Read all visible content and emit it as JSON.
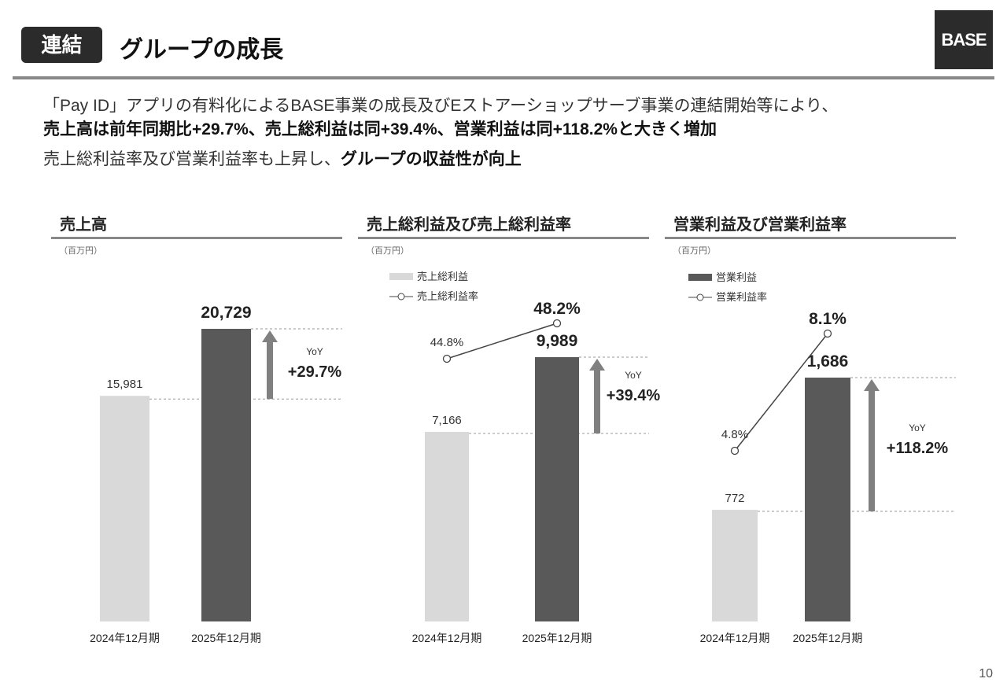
{
  "header": {
    "badge": "連結",
    "title": "グループの成長",
    "logo": "BASE"
  },
  "lead": {
    "line1": "「Pay ID」アプリの有料化によるBASE事業の成長及びEストアーショップサーブ事業の連結開始等により、",
    "line2": "売上高は前年同期比+29.7%、売上総利益は同+39.4%、営業利益は同+118.2%と大きく増加",
    "line3_normal": "売上総利益率及び営業利益率も上昇し、",
    "line3_bold": "グループの収益性が向上"
  },
  "page_number": "10",
  "colors": {
    "bar_prior": "#d9d9d9",
    "bar_current": "#595959",
    "arrow": "#808080",
    "line": "#444444"
  },
  "chart_data": [
    {
      "type": "bar",
      "title": "売上高",
      "unit": "（百万円）",
      "categories": [
        "2024年12月期",
        "2025年12月期"
      ],
      "values": [
        15981,
        20729
      ],
      "value_labels": [
        "15,981",
        "20,729"
      ],
      "yoy_label": "YoY",
      "yoy_value": "+29.7%"
    },
    {
      "type": "bar+line",
      "title": "売上総利益及び売上総利益率",
      "unit": "（百万円）",
      "categories": [
        "2024年12月期",
        "2025年12月期"
      ],
      "legend": [
        "売上総利益",
        "売上総利益率"
      ],
      "values": [
        7166,
        9989
      ],
      "value_labels": [
        "7,166",
        "9,989"
      ],
      "rates": [
        44.8,
        48.2
      ],
      "rate_labels": [
        "44.8%",
        "48.2%"
      ],
      "yoy_label": "YoY",
      "yoy_value": "+39.4%"
    },
    {
      "type": "bar+line",
      "title": "営業利益及び営業利益率",
      "unit": "（百万円）",
      "categories": [
        "2024年12月期",
        "2025年12月期"
      ],
      "legend": [
        "営業利益",
        "営業利益率"
      ],
      "values": [
        772,
        1686
      ],
      "value_labels": [
        "772",
        "1,686"
      ],
      "rates": [
        4.8,
        8.1
      ],
      "rate_labels": [
        "4.8%",
        "8.1%"
      ],
      "yoy_label": "YoY",
      "yoy_value": "+118.2%"
    }
  ]
}
